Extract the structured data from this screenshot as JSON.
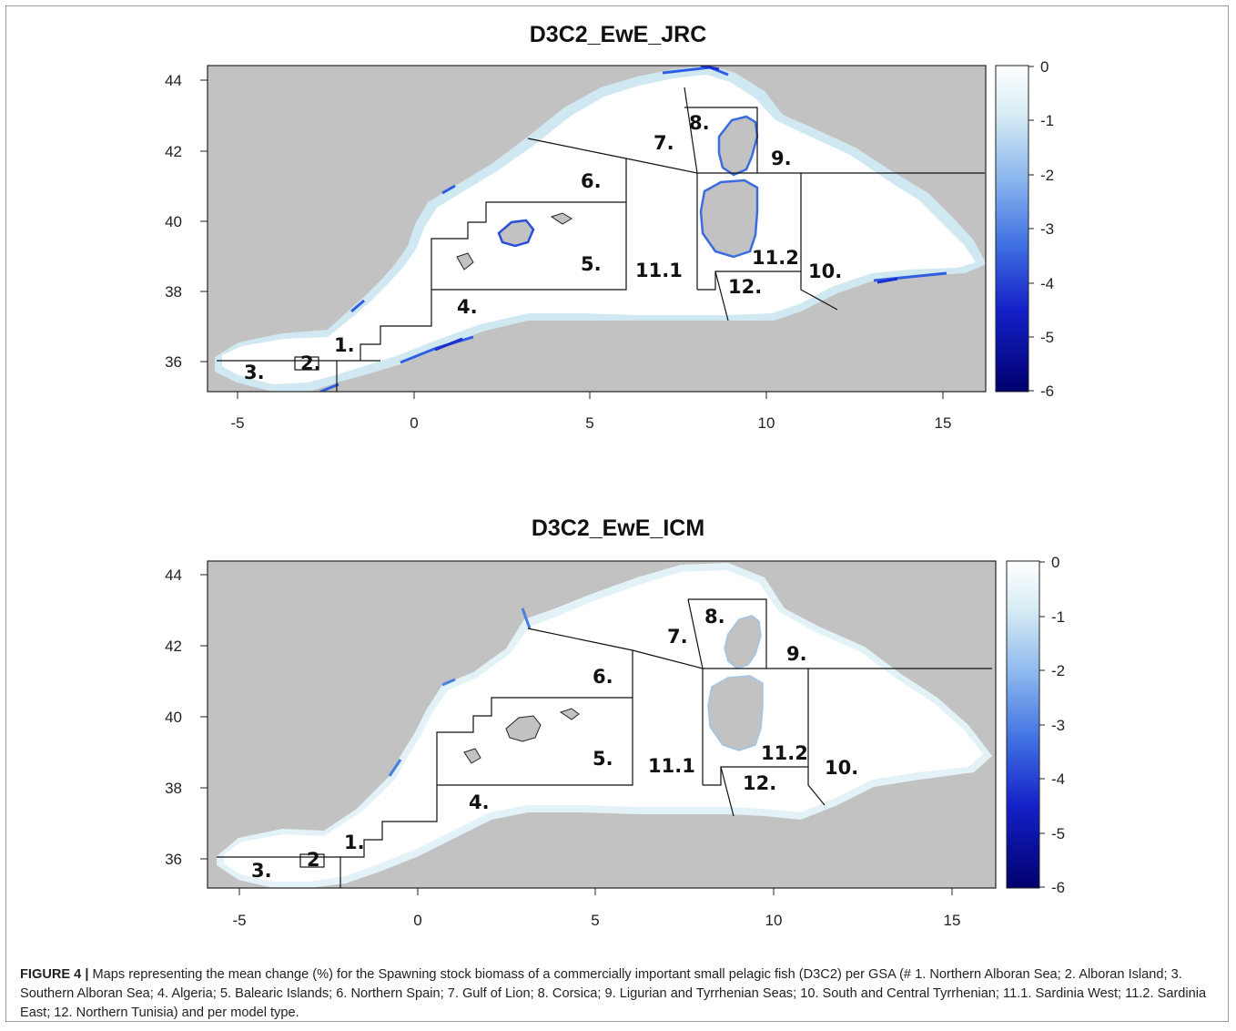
{
  "maps": [
    {
      "title": "D3C2_EwE_JRC",
      "x_ticks": [
        "-5",
        "0",
        "5",
        "10",
        "15"
      ],
      "y_ticks": [
        "44",
        "42",
        "40",
        "38",
        "36"
      ],
      "colorbar_ticks": [
        "0",
        "-1",
        "-2",
        "-3",
        "-4",
        "-5",
        "-6"
      ],
      "regions": [
        "1.",
        "2.",
        "3.",
        "4.",
        "5.",
        "6.",
        "7.",
        "8.",
        "9.",
        "10.",
        "11.1",
        "11.2",
        "12."
      ]
    },
    {
      "title": "D3C2_EwE_ICM",
      "x_ticks": [
        "-5",
        "0",
        "5",
        "10",
        "15"
      ],
      "y_ticks": [
        "44",
        "42",
        "40",
        "38",
        "36"
      ],
      "colorbar_ticks": [
        "0",
        "-1",
        "-2",
        "-3",
        "-4",
        "-5",
        "-6"
      ],
      "regions": [
        "1.",
        "2",
        "3.",
        "4.",
        "5.",
        "6.",
        "7.",
        "8.",
        "9.",
        "10.",
        "11.1",
        "11.2",
        "12."
      ]
    }
  ],
  "colors": {
    "land": "#c2c2c2",
    "sea": "#ffffff",
    "scale_light": "#e6f4f8",
    "scale_mid": "#3a6fe0",
    "scale_dark": "#000077"
  },
  "caption": {
    "label": "FIGURE 4 |",
    "text": "Maps representing the mean change (%) for the Spawning stock biomass of a commercially important small pelagic fish (D3C2) per GSA (# 1. Northern Alboran Sea; 2. Alboran Island; 3. Southern Alboran Sea; 4. Algeria; 5. Balearic Islands; 6. Northern Spain; 7. Gulf of Lion; 8. Corsica; 9. Ligurian and Tyrrhenian Seas; 10. South and Central Tyrrhenian; 11.1. Sardinia West; 11.2. Sardinia East; 12. Northern Tunisia) and per model type."
  }
}
